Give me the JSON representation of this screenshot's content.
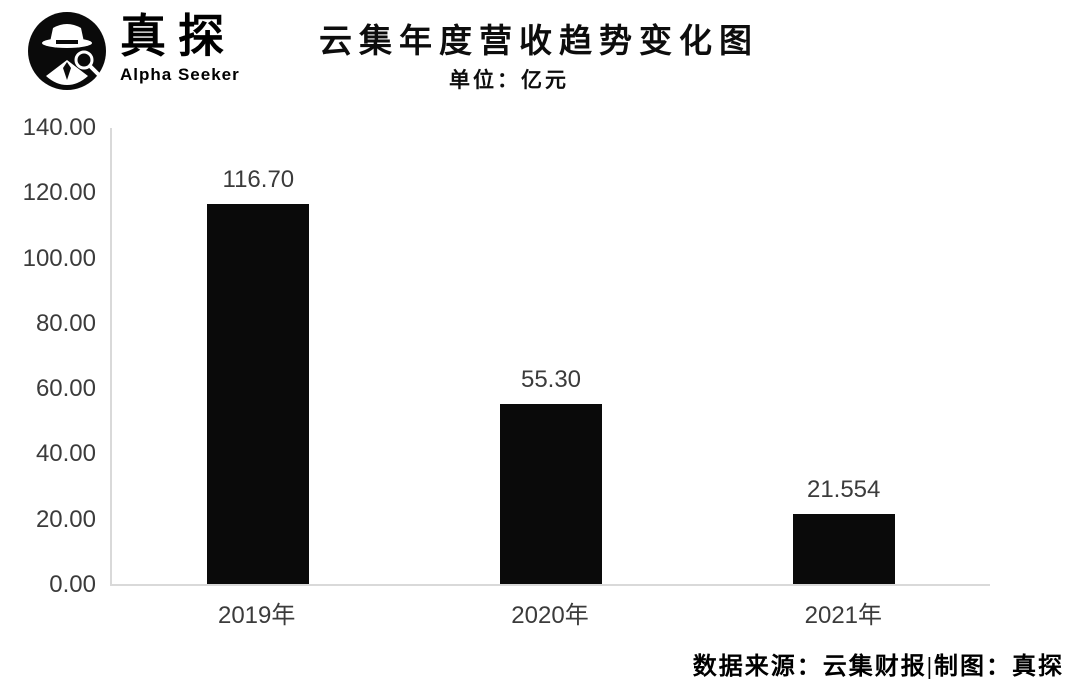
{
  "logo": {
    "brand": "真探",
    "sub": "Alpha Seeker"
  },
  "header": {
    "title": "云集年度营收趋势变化图",
    "subtitle": "单位：亿元"
  },
  "footer": {
    "source": "数据来源：云集财报|制图：真探"
  },
  "chart_data": {
    "type": "bar",
    "title": "云集年度营收趋势变化图",
    "unit_label": "单位：亿元",
    "categories": [
      "2019年",
      "2020年",
      "2021年"
    ],
    "values": [
      116.7,
      55.3,
      21.554
    ],
    "value_labels": [
      "116.70",
      "55.30",
      "21.554"
    ],
    "xlabel": "",
    "ylabel": "",
    "ylim": [
      0,
      140
    ],
    "yticks": [
      0,
      20,
      40,
      60,
      80,
      100,
      120,
      140
    ],
    "ytick_labels": [
      "0.00",
      "20.00",
      "40.00",
      "60.00",
      "80.00",
      "100.00",
      "120.00",
      "140.00"
    ],
    "bar_color": "#0a0a0a",
    "axis_color": "#d9d9d9",
    "label_color": "#3b3b3b",
    "grid": false,
    "legend": false
  }
}
